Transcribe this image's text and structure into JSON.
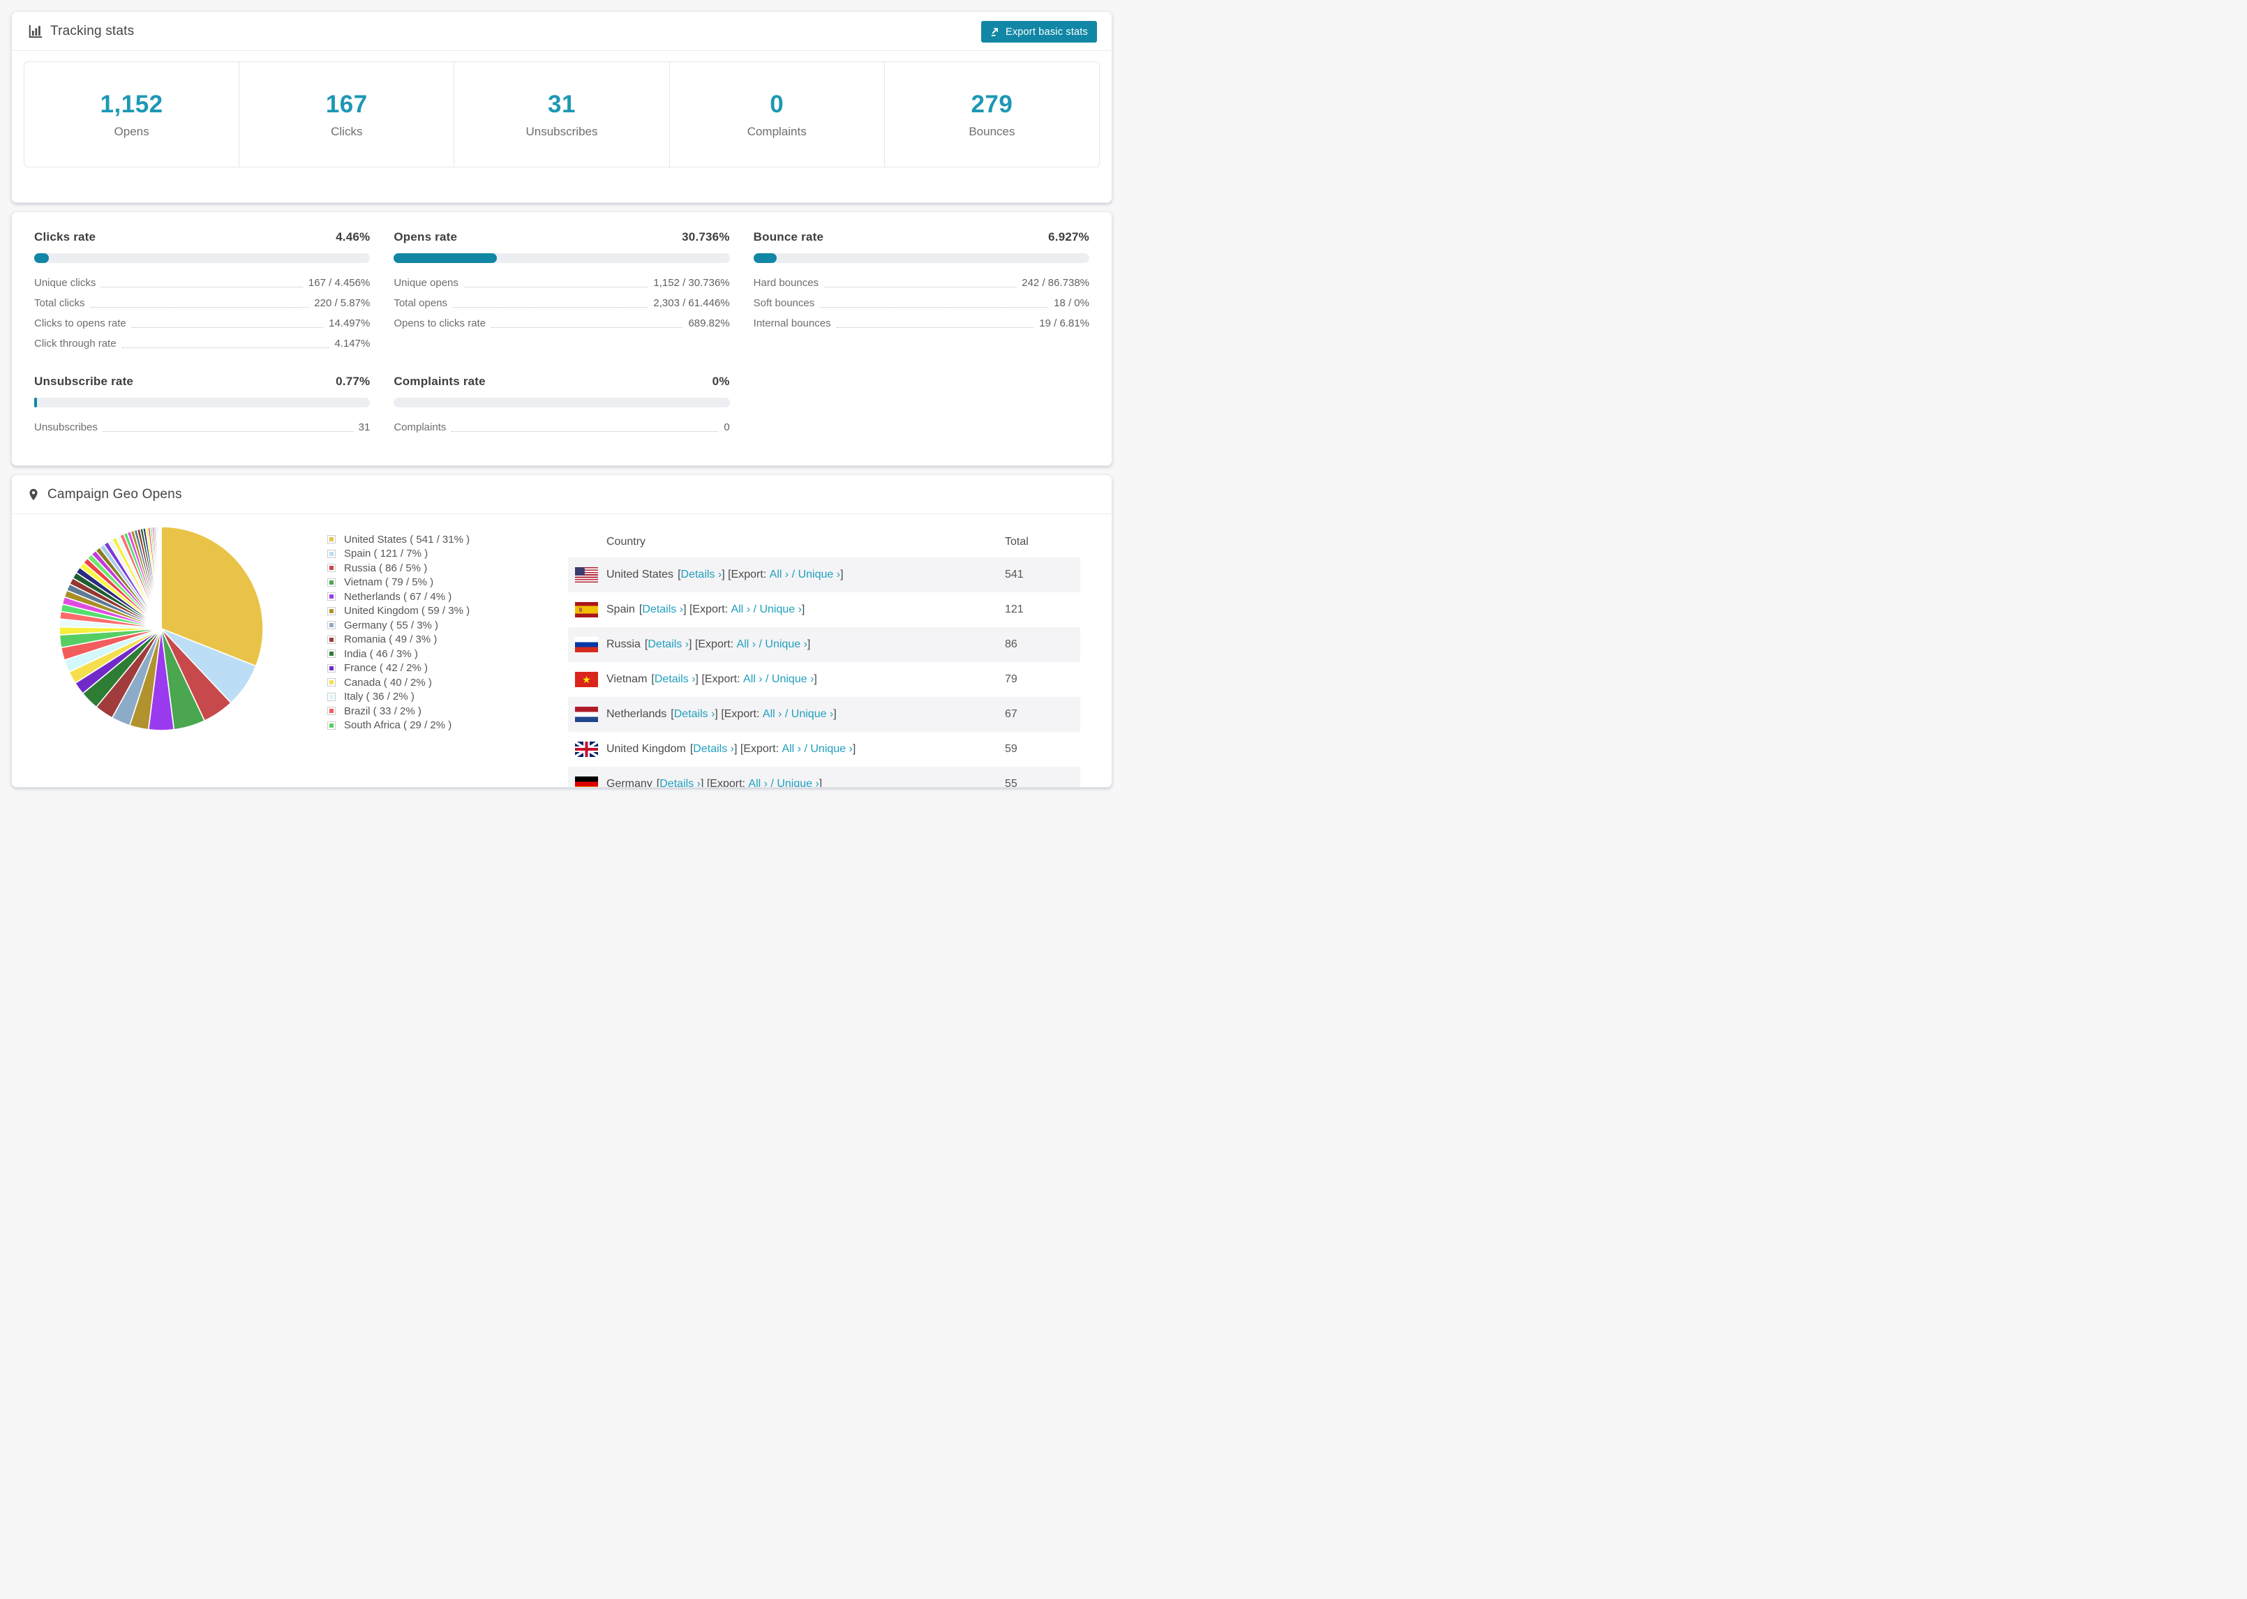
{
  "accent": {
    "primary": "#1187a5",
    "number": "#1d98b4",
    "link": "#209fbd",
    "bar_track": "#eceef1"
  },
  "tracking_card": {
    "title": "Tracking stats",
    "export_button": "Export basic stats",
    "stats": [
      {
        "value": "1,152",
        "label": "Opens"
      },
      {
        "value": "167",
        "label": "Clicks"
      },
      {
        "value": "31",
        "label": "Unsubscribes"
      },
      {
        "value": "0",
        "label": "Complaints"
      },
      {
        "value": "279",
        "label": "Bounces"
      }
    ]
  },
  "rates_card": {
    "blocks": [
      {
        "title": "Clicks rate",
        "value": "4.46%",
        "fill_pct": 4.46,
        "rows": [
          {
            "label": "Unique clicks",
            "value": "167 / 4.456%"
          },
          {
            "label": "Total clicks",
            "value": "220 / 5.87%"
          },
          {
            "label": "Clicks to opens rate",
            "value": "14.497%"
          },
          {
            "label": "Click through rate",
            "value": "4.147%"
          }
        ]
      },
      {
        "title": "Opens rate",
        "value": "30.736%",
        "fill_pct": 30.736,
        "rows": [
          {
            "label": "Unique opens",
            "value": "1,152 / 30.736%"
          },
          {
            "label": "Total opens",
            "value": "2,303 / 61.446%"
          },
          {
            "label": "Opens to clicks rate",
            "value": "689.82%"
          }
        ]
      },
      {
        "title": "Bounce rate",
        "value": "6.927%",
        "fill_pct": 6.927,
        "rows": [
          {
            "label": "Hard bounces",
            "value": "242 / 86.738%"
          },
          {
            "label": "Soft bounces",
            "value": "18 / 0%"
          },
          {
            "label": "Internal bounces",
            "value": "19 / 6.81%"
          }
        ]
      },
      {
        "title": "Unsubscribe rate",
        "value": "0.77%",
        "fill_pct": 0.77,
        "rows": [
          {
            "label": "Unsubscribes",
            "value": "31"
          }
        ]
      },
      {
        "title": "Complaints rate",
        "value": "0%",
        "fill_pct": 0,
        "rows": [
          {
            "label": "Complaints",
            "value": "0"
          }
        ]
      }
    ]
  },
  "geo_card": {
    "title": "Campaign Geo Opens",
    "table": {
      "columns": [
        "Country",
        "Total"
      ],
      "link_details": "Details",
      "link_export_prefix": "Export:",
      "link_all": "All",
      "link_unique": "Unique",
      "chevron": "›",
      "rows": [
        {
          "country": "United States",
          "flag": "us",
          "total": "541"
        },
        {
          "country": "Spain",
          "flag": "es",
          "total": "121"
        },
        {
          "country": "Russia",
          "flag": "ru",
          "total": "86"
        },
        {
          "country": "Vietnam",
          "flag": "vn",
          "total": "79"
        },
        {
          "country": "Netherlands",
          "flag": "nl",
          "total": "67"
        },
        {
          "country": "United Kingdom",
          "flag": "gb",
          "total": "59"
        },
        {
          "country": "Germany",
          "flag": "de",
          "total": "55"
        }
      ]
    }
  },
  "chart_data": {
    "type": "pie",
    "title": "Campaign Geo Opens",
    "legend_position": "right",
    "legend_format": "{label} ( {value} / {pct}% )",
    "start_angle_deg": 0,
    "direction": "clockwise",
    "slices": [
      {
        "label": "United States",
        "value": 541,
        "pct": 31,
        "color": "#e9c348"
      },
      {
        "label": "Spain",
        "value": 121,
        "pct": 7,
        "color": "#bbddf5"
      },
      {
        "label": "Russia",
        "value": 86,
        "pct": 5,
        "color": "#c7494b"
      },
      {
        "label": "Vietnam",
        "value": 79,
        "pct": 5,
        "color": "#4aa64f"
      },
      {
        "label": "Netherlands",
        "value": 67,
        "pct": 4,
        "color": "#9b3bef"
      },
      {
        "label": "United Kingdom",
        "value": 59,
        "pct": 3,
        "color": "#b2922e"
      },
      {
        "label": "Germany",
        "value": 55,
        "pct": 3,
        "color": "#8cabc8"
      },
      {
        "label": "Romania",
        "value": 49,
        "pct": 3,
        "color": "#a03c3c"
      },
      {
        "label": "India",
        "value": 46,
        "pct": 3,
        "color": "#2e7d34"
      },
      {
        "label": "France",
        "value": 42,
        "pct": 2,
        "color": "#7229c9"
      },
      {
        "label": "Canada",
        "value": 40,
        "pct": 2,
        "color": "#f6df4e"
      },
      {
        "label": "Italy",
        "value": 36,
        "pct": 2,
        "color": "#d2f8fb"
      },
      {
        "label": "Brazil",
        "value": 33,
        "pct": 2,
        "color": "#f25c5c"
      },
      {
        "label": "South Africa",
        "value": 29,
        "pct": 2,
        "color": "#57ce63"
      }
    ],
    "other_slices": {
      "approx_total_pct": 26,
      "count_approx": 40,
      "palette": [
        "#f7ef3e",
        "#e8fbfd",
        "#ff6b6b",
        "#53de6d",
        "#e04ce0",
        "#a98e26",
        "#5d7b93",
        "#93372f",
        "#1e5e31",
        "#2b2b7e",
        "#f9f93b",
        "#ef4444",
        "#6ee86e",
        "#c33bd8",
        "#8a7b1f",
        "#a9cdea",
        "#7a3bda",
        "#f2f2f2"
      ]
    }
  }
}
